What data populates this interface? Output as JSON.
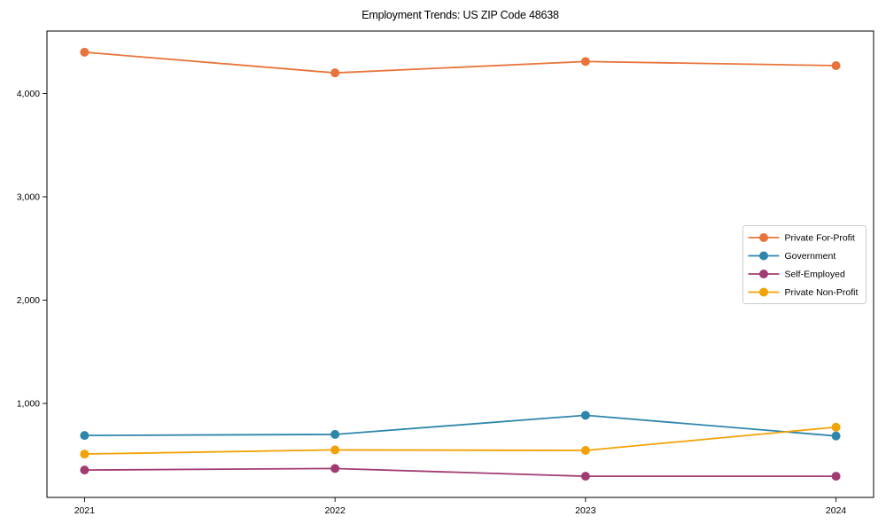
{
  "title": "Employment Trends: US ZIP Code 48638",
  "chart_data": {
    "type": "line",
    "title": "Employment Trends: US ZIP Code 48638",
    "xlabel": "",
    "ylabel": "",
    "x": [
      2021,
      2022,
      2023,
      2024
    ],
    "categories": [
      "2021",
      "2022",
      "2023",
      "2024"
    ],
    "series": [
      {
        "name": "Private For-Profit",
        "color": "#E8743B",
        "values": [
          4400,
          4200,
          4310,
          4270
        ]
      },
      {
        "name": "Government",
        "color": "#2E86AB",
        "values": [
          690,
          700,
          885,
          685
        ]
      },
      {
        "name": "Self-Employed",
        "color": "#A23B72",
        "values": [
          355,
          370,
          295,
          295
        ]
      },
      {
        "name": "Private Non-Profit",
        "color": "#F1A208",
        "values": [
          510,
          550,
          545,
          770
        ]
      }
    ],
    "xlim": [
      2020.85,
      2024.15
    ],
    "ylim": [
      90,
      4605
    ],
    "yticks": [
      {
        "value": 1000,
        "label": "1,000"
      },
      {
        "value": 2000,
        "label": "2,000"
      },
      {
        "value": 3000,
        "label": "3,000"
      },
      {
        "value": 4000,
        "label": "4,000"
      }
    ],
    "grid": false,
    "legend_position": "center-right",
    "marker": "circle",
    "line_style": "solid"
  }
}
